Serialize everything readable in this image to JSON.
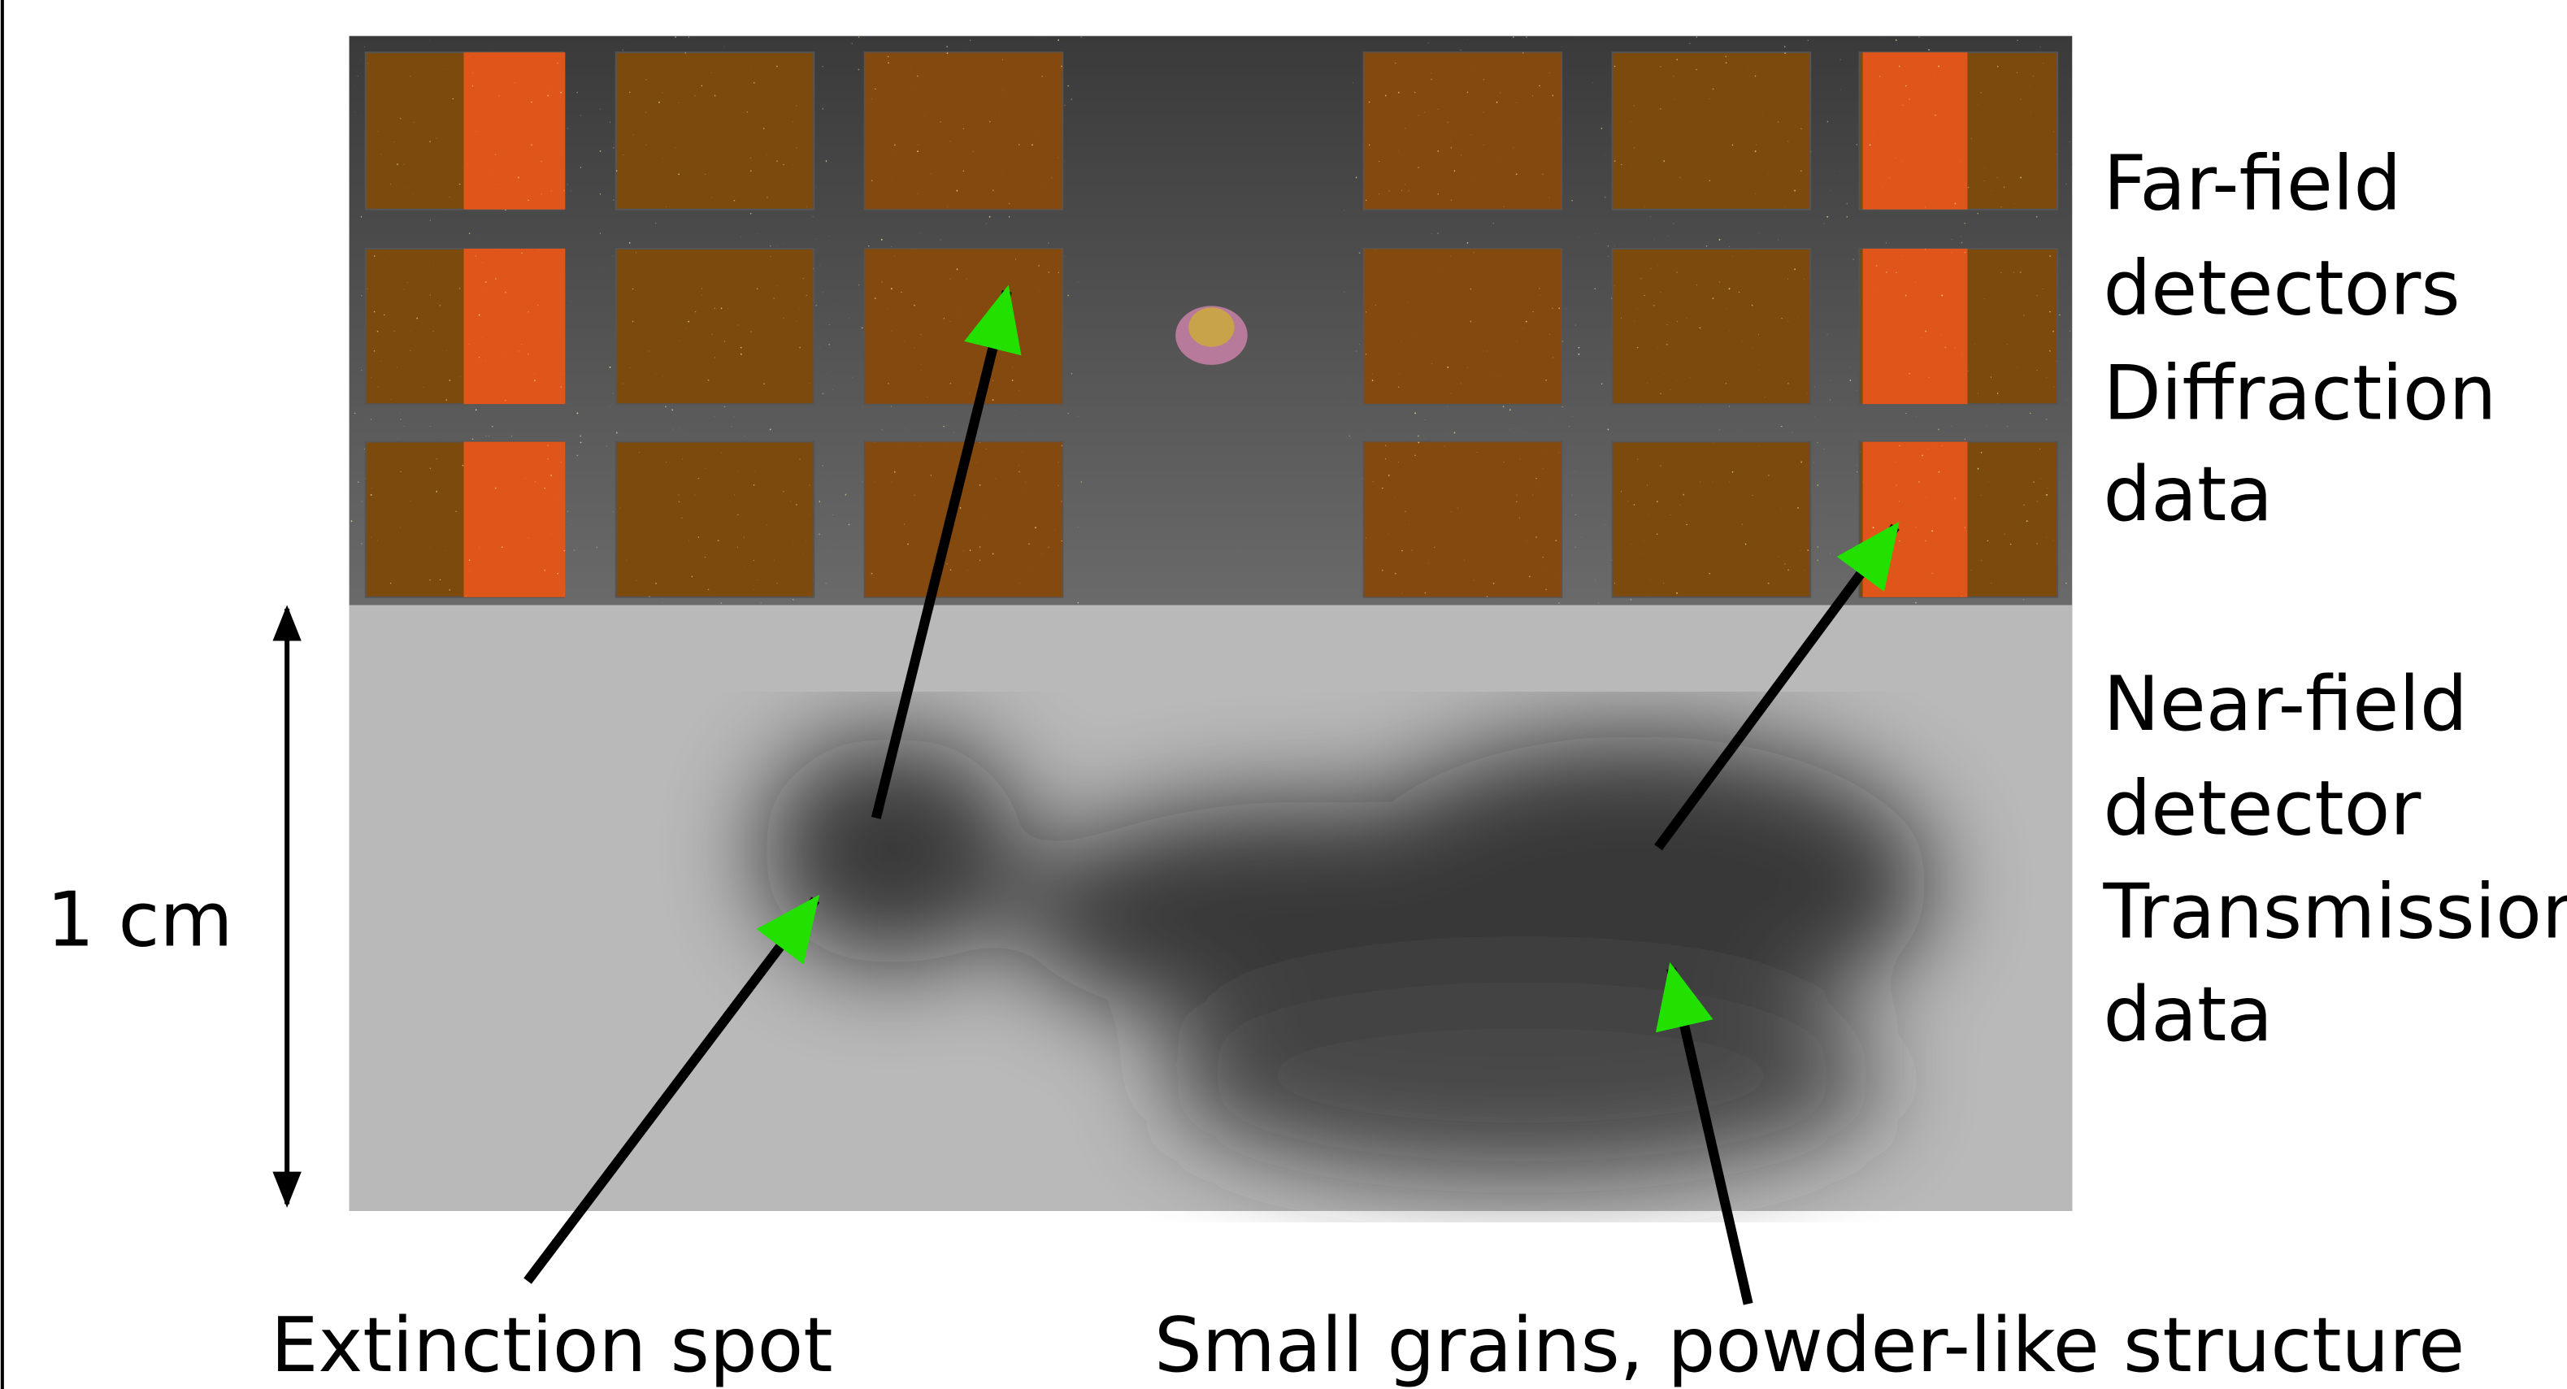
{
  "far_field": {
    "lines": [
      "Far-field",
      "detectors",
      "Diffraction",
      "data"
    ]
  },
  "near_field": {
    "lines": [
      "Near-field",
      "detector",
      "Transmission",
      "data"
    ]
  },
  "scale_bar": {
    "label": "1 cm"
  },
  "annotations": [
    {
      "label": "Extinction spot"
    },
    {
      "label": "Small grains, powder-like structure"
    }
  ]
}
